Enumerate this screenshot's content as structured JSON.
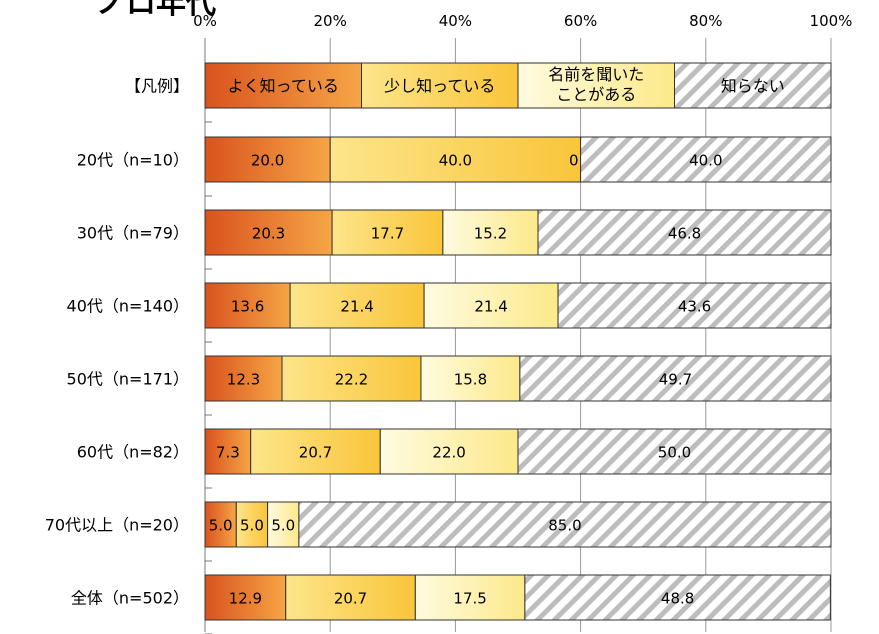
{
  "chart_data": {
    "type": "bar",
    "stacked": true,
    "orientation": "horizontal",
    "title": "ノロ年代",
    "xlim": [
      0,
      100
    ],
    "x_ticks": [
      "0%",
      "20%",
      "40%",
      "60%",
      "80%",
      "100%"
    ],
    "legend_row_label": "【凡例】",
    "legend": [
      "よく知っている",
      "少し知っている",
      "名前を聞いたことがある",
      "知らない"
    ],
    "legend_lines": [
      [
        "よく知っている"
      ],
      [
        "少し知っている"
      ],
      [
        "名前を聞いた",
        "ことがある"
      ],
      [
        "知らない"
      ]
    ],
    "categories": [
      "20代（n=10）",
      "30代（n=79）",
      "40代（n=140）",
      "50代（n=171）",
      "60代（n=82）",
      "70代以上（n=20）",
      "全体（n=502）"
    ],
    "series": [
      {
        "name": "よく知っている",
        "values": [
          20.0,
          20.3,
          13.6,
          12.3,
          7.3,
          5.0,
          12.9
        ]
      },
      {
        "name": "少し知っている",
        "values": [
          40.0,
          17.7,
          21.4,
          22.2,
          20.7,
          5.0,
          20.7
        ]
      },
      {
        "name": "名前を聞いたことがある",
        "values": [
          0.0,
          15.2,
          21.4,
          15.8,
          22.0,
          5.0,
          17.5
        ]
      },
      {
        "name": "知らない",
        "values": [
          40.0,
          46.8,
          43.6,
          49.7,
          50.0,
          85.0,
          48.8
        ]
      }
    ],
    "labels": [
      [
        "20.0",
        "40.0",
        "0",
        "40.0"
      ],
      [
        "20.3",
        "17.7",
        "15.2",
        "46.8"
      ],
      [
        "13.6",
        "21.4",
        "21.4",
        "43.6"
      ],
      [
        "12.3",
        "22.2",
        "15.8",
        "49.7"
      ],
      [
        "7.3",
        "20.7",
        "22.0",
        "50.0"
      ],
      [
        "5.0",
        "5.0",
        "5.0",
        "85.0"
      ],
      [
        "12.9",
        "20.7",
        "17.5",
        "48.8"
      ]
    ],
    "colors": {
      "よく知っている": "#e8782c",
      "少し知っている": "#fcd85a",
      "名前を聞いたことがある": "#fdf2ac",
      "知らない": "hatched"
    },
    "grid": true
  }
}
